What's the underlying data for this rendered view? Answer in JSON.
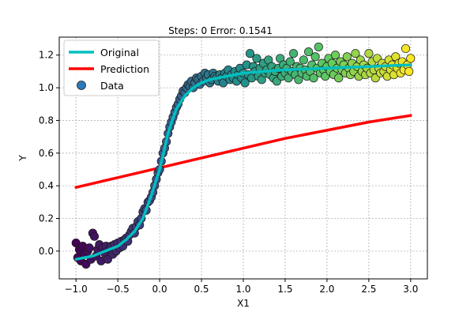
{
  "chart_data": {
    "type": "scatter",
    "title": "Steps: 0 Error: 0.1541",
    "xlabel": "X1",
    "ylabel": "Y",
    "xlim": [
      -1.2,
      3.2
    ],
    "ylim": [
      -0.17,
      1.31
    ],
    "xticks": [
      -1.0,
      -0.5,
      0.0,
      0.5,
      1.0,
      1.5,
      2.0,
      2.5,
      3.0
    ],
    "yticks": [
      0.0,
      0.2,
      0.4,
      0.6,
      0.8,
      1.0,
      1.2
    ],
    "xtick_labels": [
      "−1.0",
      "−0.5",
      "0.0",
      "0.5",
      "1.0",
      "1.5",
      "2.0",
      "2.5",
      "3.0"
    ],
    "ytick_labels": [
      "0.0",
      "0.2",
      "0.4",
      "0.6",
      "0.8",
      "1.0",
      "1.2"
    ],
    "grid": true,
    "legend_position": "top-left",
    "series": [
      {
        "name": "Original",
        "kind": "line",
        "color": "#00bfbf",
        "x": [
          -1.0,
          -0.9,
          -0.8,
          -0.7,
          -0.6,
          -0.5,
          -0.4,
          -0.3,
          -0.2,
          -0.15,
          -0.1,
          -0.05,
          0.0,
          0.05,
          0.1,
          0.15,
          0.2,
          0.3,
          0.4,
          0.5,
          0.6,
          0.8,
          1.0,
          1.25,
          1.5,
          2.0,
          2.5,
          3.0
        ],
        "y": [
          -0.05,
          -0.04,
          -0.03,
          -0.01,
          0.01,
          0.03,
          0.07,
          0.12,
          0.2,
          0.27,
          0.34,
          0.42,
          0.5,
          0.61,
          0.72,
          0.8,
          0.87,
          0.95,
          1.0,
          1.03,
          1.05,
          1.07,
          1.09,
          1.1,
          1.11,
          1.12,
          1.13,
          1.14
        ]
      },
      {
        "name": "Prediction",
        "kind": "line",
        "color": "#ff0000",
        "x": [
          -1.0,
          -0.5,
          0.0,
          0.5,
          1.0,
          1.5,
          2.0,
          2.5,
          3.0
        ],
        "y": [
          0.39,
          0.45,
          0.51,
          0.57,
          0.63,
          0.69,
          0.74,
          0.79,
          0.83
        ]
      },
      {
        "name": "Data",
        "kind": "scatter",
        "colormap": "viridis",
        "points": [
          [
            -1.0,
            0.05
          ],
          [
            -0.98,
            -0.04
          ],
          [
            -0.96,
            0.01
          ],
          [
            -0.94,
            -0.06
          ],
          [
            -0.92,
            0.03
          ],
          [
            -0.9,
            -0.02
          ],
          [
            -0.88,
            -0.08
          ],
          [
            -0.86,
            0.0
          ],
          [
            -0.84,
            0.02
          ],
          [
            -0.82,
            -0.05
          ],
          [
            -0.8,
            0.11
          ],
          [
            -0.78,
            0.09
          ],
          [
            -0.76,
            -0.03
          ],
          [
            -0.74,
            0.01
          ],
          [
            -0.72,
            0.04
          ],
          [
            -0.7,
            -0.06
          ],
          [
            -0.68,
            0.02
          ],
          [
            -0.66,
            -0.01
          ],
          [
            -0.64,
            0.03
          ],
          [
            -0.62,
            -0.05
          ],
          [
            -0.6,
            0.01
          ],
          [
            -0.58,
            0.03
          ],
          [
            -0.56,
            -0.02
          ],
          [
            -0.54,
            0.04
          ],
          [
            -0.52,
            0.0
          ],
          [
            -0.5,
            0.05
          ],
          [
            -0.48,
            0.02
          ],
          [
            -0.46,
            0.06
          ],
          [
            -0.44,
            0.03
          ],
          [
            -0.42,
            0.07
          ],
          [
            -0.4,
            0.08
          ],
          [
            -0.38,
            0.06
          ],
          [
            -0.36,
            0.1
          ],
          [
            -0.34,
            0.12
          ],
          [
            -0.32,
            0.14
          ],
          [
            -0.3,
            0.11
          ],
          [
            -0.28,
            0.15
          ],
          [
            -0.26,
            0.18
          ],
          [
            -0.24,
            0.16
          ],
          [
            -0.22,
            0.2
          ],
          [
            -0.2,
            0.24
          ],
          [
            -0.18,
            0.26
          ],
          [
            -0.16,
            0.25
          ],
          [
            -0.14,
            0.3
          ],
          [
            -0.12,
            0.31
          ],
          [
            -0.1,
            0.33
          ],
          [
            -0.08,
            0.36
          ],
          [
            -0.06,
            0.4
          ],
          [
            -0.04,
            0.44
          ],
          [
            -0.02,
            0.48
          ],
          [
            0.0,
            0.5
          ],
          [
            0.02,
            0.55
          ],
          [
            0.04,
            0.6
          ],
          [
            0.06,
            0.63
          ],
          [
            0.08,
            0.67
          ],
          [
            0.1,
            0.72
          ],
          [
            0.12,
            0.76
          ],
          [
            0.14,
            0.79
          ],
          [
            0.16,
            0.82
          ],
          [
            0.18,
            0.85
          ],
          [
            0.2,
            0.88
          ],
          [
            0.22,
            0.9
          ],
          [
            0.24,
            0.93
          ],
          [
            0.26,
            0.95
          ],
          [
            0.28,
            0.98
          ],
          [
            0.3,
            0.97
          ],
          [
            0.32,
            1.0
          ],
          [
            0.34,
            1.02
          ],
          [
            0.36,
            1.01
          ],
          [
            0.38,
            1.04
          ],
          [
            0.4,
            1.0
          ],
          [
            0.42,
            1.03
          ],
          [
            0.44,
            1.06
          ],
          [
            0.46,
            1.05
          ],
          [
            0.48,
            1.02
          ],
          [
            0.5,
            1.07
          ],
          [
            0.52,
            1.04
          ],
          [
            0.54,
            1.09
          ],
          [
            0.56,
            1.06
          ],
          [
            0.58,
            1.08
          ],
          [
            0.6,
            1.03
          ],
          [
            0.62,
            1.05
          ],
          [
            0.64,
            1.09
          ],
          [
            0.66,
            1.07
          ],
          [
            0.68,
            1.06
          ],
          [
            0.7,
            1.04
          ],
          [
            0.72,
            1.08
          ],
          [
            0.74,
            1.06
          ],
          [
            0.76,
            1.03
          ],
          [
            0.78,
            1.09
          ],
          [
            0.8,
            1.07
          ],
          [
            0.82,
            1.11
          ],
          [
            0.84,
            1.05
          ],
          [
            0.86,
            1.08
          ],
          [
            0.88,
            1.06
          ],
          [
            0.9,
            1.1
          ],
          [
            0.92,
            1.04
          ],
          [
            0.94,
            1.08
          ],
          [
            0.96,
            1.12
          ],
          [
            0.98,
            1.06
          ],
          [
            1.0,
            1.09
          ],
          [
            1.02,
            1.03
          ],
          [
            1.04,
            1.14
          ],
          [
            1.06,
            1.08
          ],
          [
            1.08,
            1.21
          ],
          [
            1.1,
            1.06
          ],
          [
            1.12,
            1.13
          ],
          [
            1.14,
            1.1
          ],
          [
            1.16,
            1.18
          ],
          [
            1.18,
            1.07
          ],
          [
            1.2,
            1.12
          ],
          [
            1.22,
            1.05
          ],
          [
            1.24,
            1.15
          ],
          [
            1.26,
            1.09
          ],
          [
            1.28,
            1.11
          ],
          [
            1.3,
            1.17
          ],
          [
            1.32,
            1.08
          ],
          [
            1.34,
            1.13
          ],
          [
            1.36,
            1.06
          ],
          [
            1.38,
            1.1
          ],
          [
            1.4,
            1.04
          ],
          [
            1.42,
            1.12
          ],
          [
            1.44,
            1.18
          ],
          [
            1.46,
            1.07
          ],
          [
            1.48,
            1.14
          ],
          [
            1.5,
            1.09
          ],
          [
            1.52,
            1.12
          ],
          [
            1.54,
            1.06
          ],
          [
            1.56,
            1.16
          ],
          [
            1.58,
            1.1
          ],
          [
            1.6,
            1.21
          ],
          [
            1.62,
            1.08
          ],
          [
            1.64,
            1.13
          ],
          [
            1.66,
            1.05
          ],
          [
            1.68,
            1.12
          ],
          [
            1.7,
            1.09
          ],
          [
            1.72,
            1.17
          ],
          [
            1.74,
            1.11
          ],
          [
            1.76,
            1.07
          ],
          [
            1.78,
            1.22
          ],
          [
            1.8,
            1.1
          ],
          [
            1.82,
            1.14
          ],
          [
            1.84,
            1.06
          ],
          [
            1.86,
            1.19
          ],
          [
            1.88,
            1.12
          ],
          [
            1.9,
            1.25
          ],
          [
            1.92,
            1.09
          ],
          [
            1.94,
            1.15
          ],
          [
            1.96,
            1.11
          ],
          [
            1.98,
            1.07
          ],
          [
            2.0,
            1.13
          ],
          [
            2.02,
            1.18
          ],
          [
            2.04,
            1.1
          ],
          [
            2.06,
            1.15
          ],
          [
            2.08,
            1.08
          ],
          [
            2.1,
            1.2
          ],
          [
            2.12,
            1.12
          ],
          [
            2.14,
            1.06
          ],
          [
            2.16,
            1.16
          ],
          [
            2.18,
            1.11
          ],
          [
            2.2,
            1.14
          ],
          [
            2.22,
            1.09
          ],
          [
            2.24,
            1.19
          ],
          [
            2.26,
            1.12
          ],
          [
            2.28,
            1.08
          ],
          [
            2.3,
            1.15
          ],
          [
            2.32,
            1.1
          ],
          [
            2.34,
            1.21
          ],
          [
            2.36,
            1.13
          ],
          [
            2.38,
            1.07
          ],
          [
            2.4,
            1.17
          ],
          [
            2.42,
            1.1
          ],
          [
            2.44,
            1.14
          ],
          [
            2.46,
            1.08
          ],
          [
            2.48,
            1.12
          ],
          [
            2.5,
            1.21
          ],
          [
            2.52,
            1.09
          ],
          [
            2.54,
            1.16
          ],
          [
            2.56,
            1.11
          ],
          [
            2.58,
            1.06
          ],
          [
            2.6,
            1.18
          ],
          [
            2.62,
            1.12
          ],
          [
            2.64,
            1.09
          ],
          [
            2.66,
            1.15
          ],
          [
            2.68,
            1.1
          ],
          [
            2.7,
            1.13
          ],
          [
            2.72,
            1.07
          ],
          [
            2.74,
            1.17
          ],
          [
            2.76,
            1.11
          ],
          [
            2.78,
            1.14
          ],
          [
            2.8,
            1.08
          ],
          [
            2.82,
            1.19
          ],
          [
            2.84,
            1.12
          ],
          [
            2.86,
            1.15
          ],
          [
            2.88,
            1.09
          ],
          [
            2.9,
            1.16
          ],
          [
            2.92,
            1.11
          ],
          [
            2.94,
            1.24
          ],
          [
            2.96,
            1.14
          ],
          [
            2.98,
            1.1
          ],
          [
            3.0,
            1.18
          ]
        ]
      }
    ]
  }
}
